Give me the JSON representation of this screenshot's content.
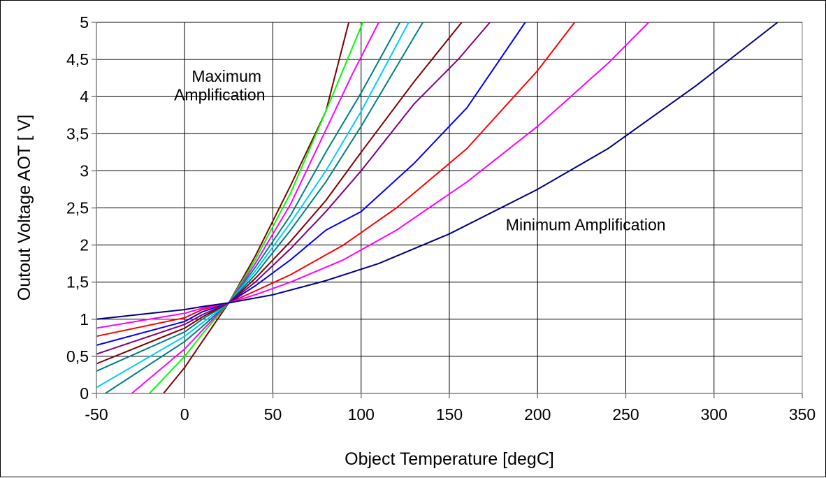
{
  "chart_data": {
    "type": "line",
    "title": "",
    "xlabel": "Object Temperature [degC]",
    "ylabel": "Outout Voltage AOT [ V]",
    "xlim": [
      -50,
      350
    ],
    "ylim": [
      0,
      5
    ],
    "xticks": [
      {
        "v": -50,
        "label": "-50"
      },
      {
        "v": 0,
        "label": "0"
      },
      {
        "v": 50,
        "label": "50"
      },
      {
        "v": 100,
        "label": "100"
      },
      {
        "v": 150,
        "label": "150"
      },
      {
        "v": 200,
        "label": "200"
      },
      {
        "v": 250,
        "label": "250"
      },
      {
        "v": 300,
        "label": "300"
      },
      {
        "v": 350,
        "label": "350"
      }
    ],
    "yticks": [
      {
        "v": 0,
        "label": "0"
      },
      {
        "v": 0.5,
        "label": "0,5"
      },
      {
        "v": 1,
        "label": "1"
      },
      {
        "v": 1.5,
        "label": "1,5"
      },
      {
        "v": 2,
        "label": "2"
      },
      {
        "v": 2.5,
        "label": "2,5"
      },
      {
        "v": 3,
        "label": "3"
      },
      {
        "v": 3.5,
        "label": "3,5"
      },
      {
        "v": 4,
        "label": "4"
      },
      {
        "v": 4.5,
        "label": "4,5"
      },
      {
        "v": 5,
        "label": "5"
      }
    ],
    "grid": true,
    "legend": "none",
    "annotations": [
      {
        "text": "Maximum",
        "x": 4,
        "y": 4.2
      },
      {
        "text": "Amplification",
        "x": -6,
        "y": 3.95
      },
      {
        "text": "Minimum Amplification",
        "x": 182,
        "y": 2.2
      }
    ],
    "series": [
      {
        "color": "#800000",
        "points": [
          [
            -12,
            0
          ],
          [
            0,
            0.35
          ],
          [
            10,
            0.7
          ],
          [
            25,
            1.22
          ],
          [
            40,
            1.85
          ],
          [
            60,
            2.8
          ],
          [
            80,
            3.8
          ],
          [
            93,
            5
          ]
        ]
      },
      {
        "color": "#00ff00",
        "points": [
          [
            -20,
            0
          ],
          [
            0,
            0.5
          ],
          [
            10,
            0.8
          ],
          [
            25,
            1.22
          ],
          [
            40,
            1.8
          ],
          [
            60,
            2.7
          ],
          [
            80,
            3.8
          ],
          [
            101,
            5
          ]
        ]
      },
      {
        "color": "#ff00ff",
        "points": [
          [
            -30,
            0
          ],
          [
            0,
            0.6
          ],
          [
            10,
            0.85
          ],
          [
            25,
            1.22
          ],
          [
            40,
            1.75
          ],
          [
            60,
            2.55
          ],
          [
            80,
            3.55
          ],
          [
            95,
            4.3
          ],
          [
            110,
            5
          ]
        ]
      },
      {
        "color": "#008080",
        "points": [
          [
            -45,
            0
          ],
          [
            0,
            0.7
          ],
          [
            10,
            0.9
          ],
          [
            25,
            1.22
          ],
          [
            40,
            1.7
          ],
          [
            60,
            2.4
          ],
          [
            80,
            3.25
          ],
          [
            100,
            4.05
          ],
          [
            122,
            5
          ]
        ]
      },
      {
        "color": "#00ccff",
        "points": [
          [
            -50,
            0.08
          ],
          [
            0,
            0.77
          ],
          [
            10,
            0.95
          ],
          [
            25,
            1.22
          ],
          [
            40,
            1.65
          ],
          [
            60,
            2.3
          ],
          [
            80,
            3
          ],
          [
            100,
            3.8
          ],
          [
            127,
            5
          ]
        ]
      },
      {
        "color": "#008080",
        "points": [
          [
            -50,
            0.3
          ],
          [
            0,
            0.83
          ],
          [
            10,
            1
          ],
          [
            25,
            1.22
          ],
          [
            40,
            1.6
          ],
          [
            60,
            2.2
          ],
          [
            80,
            2.85
          ],
          [
            100,
            3.6
          ],
          [
            135,
            5
          ]
        ]
      },
      {
        "color": "#800000",
        "points": [
          [
            -50,
            0.4
          ],
          [
            0,
            0.88
          ],
          [
            10,
            1.03
          ],
          [
            25,
            1.22
          ],
          [
            40,
            1.55
          ],
          [
            60,
            2.05
          ],
          [
            80,
            2.6
          ],
          [
            100,
            3.25
          ],
          [
            130,
            4.2
          ],
          [
            157,
            5
          ]
        ]
      },
      {
        "color": "#800080",
        "points": [
          [
            -50,
            0.53
          ],
          [
            0,
            0.93
          ],
          [
            10,
            1.06
          ],
          [
            25,
            1.22
          ],
          [
            40,
            1.5
          ],
          [
            60,
            1.95
          ],
          [
            80,
            2.45
          ],
          [
            100,
            3
          ],
          [
            130,
            3.9
          ],
          [
            155,
            4.5
          ],
          [
            173,
            5
          ]
        ]
      },
      {
        "color": "#0000ff",
        "points": [
          [
            -50,
            0.65
          ],
          [
            0,
            0.97
          ],
          [
            10,
            1.1
          ],
          [
            25,
            1.22
          ],
          [
            40,
            1.45
          ],
          [
            60,
            1.8
          ],
          [
            80,
            2.2
          ],
          [
            100,
            2.45
          ],
          [
            130,
            3.1
          ],
          [
            160,
            3.85
          ],
          [
            193,
            5
          ]
        ]
      },
      {
        "color": "#ff0000",
        "points": [
          [
            -50,
            0.77
          ],
          [
            0,
            1.02
          ],
          [
            10,
            1.13
          ],
          [
            25,
            1.22
          ],
          [
            40,
            1.38
          ],
          [
            60,
            1.6
          ],
          [
            90,
            2
          ],
          [
            120,
            2.5
          ],
          [
            160,
            3.3
          ],
          [
            200,
            4.35
          ],
          [
            221,
            5
          ]
        ]
      },
      {
        "color": "#ff00ff",
        "points": [
          [
            -50,
            0.88
          ],
          [
            0,
            1.08
          ],
          [
            10,
            1.15
          ],
          [
            25,
            1.22
          ],
          [
            40,
            1.33
          ],
          [
            60,
            1.5
          ],
          [
            90,
            1.8
          ],
          [
            120,
            2.2
          ],
          [
            160,
            2.85
          ],
          [
            200,
            3.6
          ],
          [
            240,
            4.45
          ],
          [
            263,
            5
          ]
        ]
      },
      {
        "color": "#000080",
        "points": [
          [
            -50,
            1
          ],
          [
            0,
            1.13
          ],
          [
            10,
            1.17
          ],
          [
            25,
            1.22
          ],
          [
            50,
            1.33
          ],
          [
            80,
            1.52
          ],
          [
            110,
            1.75
          ],
          [
            150,
            2.15
          ],
          [
            200,
            2.75
          ],
          [
            240,
            3.3
          ],
          [
            290,
            4.15
          ],
          [
            336,
            5
          ]
        ]
      }
    ]
  }
}
